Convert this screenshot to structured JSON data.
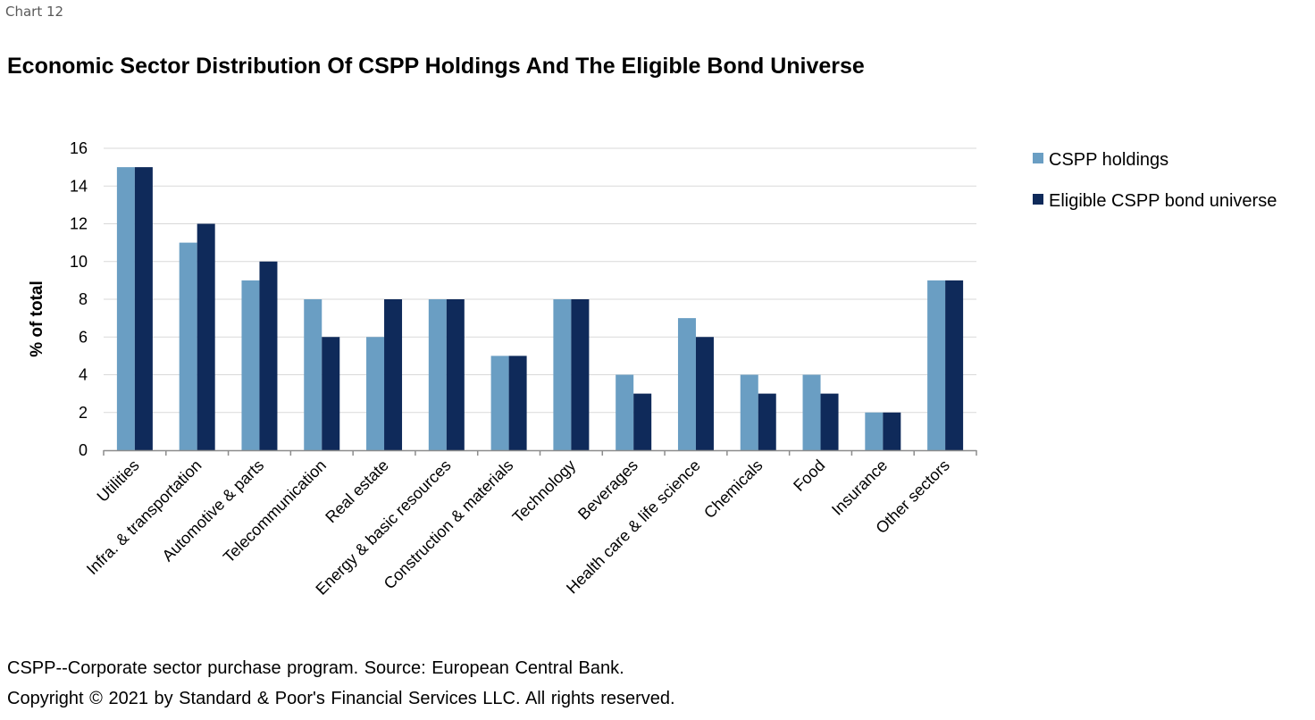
{
  "header": {
    "chart_label": "Chart 12",
    "title": "Economic Sector Distribution Of CSPP Holdings And The Eligible Bond Universe"
  },
  "footer": {
    "note": "CSPP--Corporate sector purchase program. Source: European Central Bank.",
    "copyright": "Copyright © 2021 by Standard & Poor's Financial Services LLC. All rights reserved."
  },
  "chart_data": {
    "type": "bar",
    "title": "Economic Sector Distribution Of CSPP Holdings And The Eligible Bond Universe",
    "ylabel": "% of total",
    "xlabel": "",
    "ylim": [
      0,
      16
    ],
    "yticks": [
      0,
      2,
      4,
      6,
      8,
      10,
      12,
      14,
      16
    ],
    "grid": true,
    "legend_position": "top-right",
    "categories": [
      "Utilities",
      "Infra. & transportation",
      "Automotive & parts",
      "Telecommunication",
      "Real estate",
      "Energy & basic resources",
      "Construction & materials",
      "Technology",
      "Beverages",
      "Health care & life science",
      "Chemicals",
      "Food",
      "Insurance",
      "Other sectors"
    ],
    "series": [
      {
        "name": "CSPP holdings",
        "color": "#6a9ec3",
        "values": [
          15,
          11,
          9,
          8,
          6,
          8,
          5,
          8,
          4,
          7,
          4,
          4,
          2,
          9
        ]
      },
      {
        "name": "Eligible CSPP bond universe",
        "color": "#0f2a5a",
        "values": [
          15,
          12,
          10,
          6,
          8,
          8,
          5,
          8,
          3,
          6,
          3,
          3,
          2,
          9
        ]
      }
    ]
  }
}
